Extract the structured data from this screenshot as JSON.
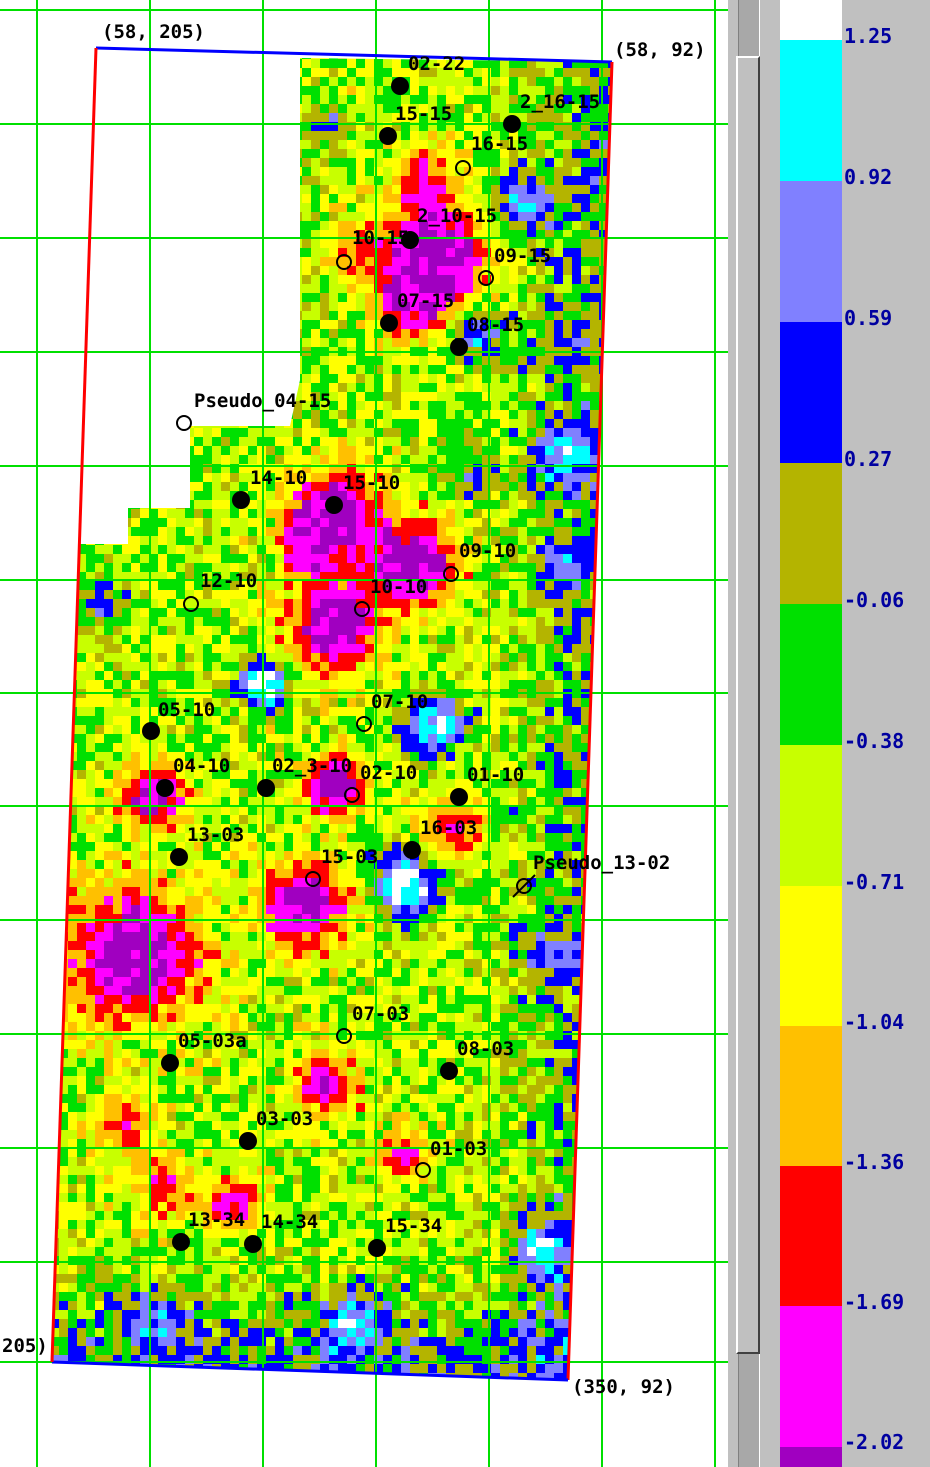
{
  "map": {
    "corners": [
      {
        "text": "(58, 205)"
      },
      {
        "text": "(58, 92)"
      },
      {
        "text": "(350, 92)"
      },
      {
        "text": "205)"
      }
    ],
    "wells": [
      {
        "name": "02-22",
        "status": "active"
      },
      {
        "name": "2_16-15",
        "status": "active"
      },
      {
        "name": "15-15",
        "status": "active"
      },
      {
        "name": "16-15",
        "status": "inactive"
      },
      {
        "name": "2_10-15",
        "status": "active"
      },
      {
        "name": "10-15",
        "status": "inactive"
      },
      {
        "name": "09-15",
        "status": "inactive"
      },
      {
        "name": "07-15",
        "status": "active"
      },
      {
        "name": "08-15",
        "status": "active"
      },
      {
        "name": "Pseudo_04-15",
        "status": "inactive"
      },
      {
        "name": "14-10",
        "status": "active"
      },
      {
        "name": "15-10",
        "status": "active"
      },
      {
        "name": "09-10",
        "status": "inactive"
      },
      {
        "name": "12-10",
        "status": "inactive"
      },
      {
        "name": "10-10",
        "status": "inactive"
      },
      {
        "name": "05-10",
        "status": "active"
      },
      {
        "name": "07-10",
        "status": "inactive"
      },
      {
        "name": "04-10",
        "status": "active"
      },
      {
        "name": "02_3-10",
        "status": "active"
      },
      {
        "name": "02-10",
        "status": "inactive"
      },
      {
        "name": "01-10",
        "status": "active"
      },
      {
        "name": "13-03",
        "status": "active"
      },
      {
        "name": "16-03",
        "status": "active"
      },
      {
        "name": "15-03",
        "status": "inactive"
      },
      {
        "name": "Pseudo_13-02",
        "status": "plugged"
      },
      {
        "name": "07-03",
        "status": "inactive"
      },
      {
        "name": "05-03a",
        "status": "active"
      },
      {
        "name": "08-03",
        "status": "active"
      },
      {
        "name": "03-03",
        "status": "active"
      },
      {
        "name": "01-03",
        "status": "inactive"
      },
      {
        "name": "13-34",
        "status": "active"
      },
      {
        "name": "14-34",
        "status": "active"
      },
      {
        "name": "15-34",
        "status": "active"
      }
    ]
  },
  "legend": {
    "bands": [
      {
        "color": "#ffffff"
      },
      {
        "color": "#00ffff",
        "label": "1.25"
      },
      {
        "color": "#8080ff",
        "label": "0.92"
      },
      {
        "color": "#0000ff",
        "label": "0.59"
      },
      {
        "color": "#b4b400",
        "label": "0.27"
      },
      {
        "color": "#00e000",
        "label": "-0.06"
      },
      {
        "color": "#c8ff00",
        "label": "-0.38"
      },
      {
        "color": "#ffff00",
        "label": "-0.71"
      },
      {
        "color": "#ffc000",
        "label": "-1.04"
      },
      {
        "color": "#ff0000",
        "label": "-1.36"
      },
      {
        "color": "#ff00ff",
        "label": "-1.69"
      },
      {
        "color": "#a000c0",
        "label": "-2.02"
      }
    ]
  },
  "colors": {
    "grid": "#00e000",
    "boundary_top": "#0000ff",
    "boundary_side": "#ff0000"
  }
}
